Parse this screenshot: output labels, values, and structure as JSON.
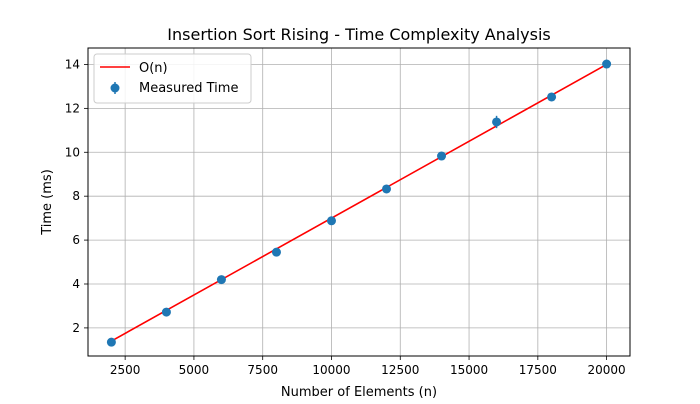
{
  "chart_data": {
    "type": "scatter",
    "title": "Insertion Sort Rising - Time Complexity Analysis",
    "xlabel": "Number of Elements (n)",
    "ylabel": "Time (ms)",
    "xlim": [
      1150,
      20850
    ],
    "ylim": [
      0.72,
      14.75
    ],
    "xticks": [
      2500,
      5000,
      7500,
      10000,
      12500,
      15000,
      17500,
      20000
    ],
    "yticks": [
      2,
      4,
      6,
      8,
      10,
      12,
      14
    ],
    "grid": true,
    "legend_position": "upper-left",
    "series": [
      {
        "name": "O(n)",
        "kind": "line",
        "color": "#ff0000",
        "x": [
          2000,
          20000
        ],
        "y": [
          1.4,
          14.0
        ]
      },
      {
        "name": "Measured Time",
        "kind": "scatter-errorbar",
        "color": "#1f77b4",
        "x": [
          2000,
          4000,
          6000,
          8000,
          10000,
          12000,
          14000,
          16000,
          18000,
          20000
        ],
        "y": [
          1.35,
          2.72,
          4.2,
          5.45,
          6.88,
          8.33,
          9.83,
          11.38,
          12.52,
          14.02
        ],
        "yerr": [
          0.05,
          0.06,
          0.07,
          0.07,
          0.08,
          0.08,
          0.1,
          0.28,
          0.1,
          0.1
        ]
      }
    ]
  }
}
